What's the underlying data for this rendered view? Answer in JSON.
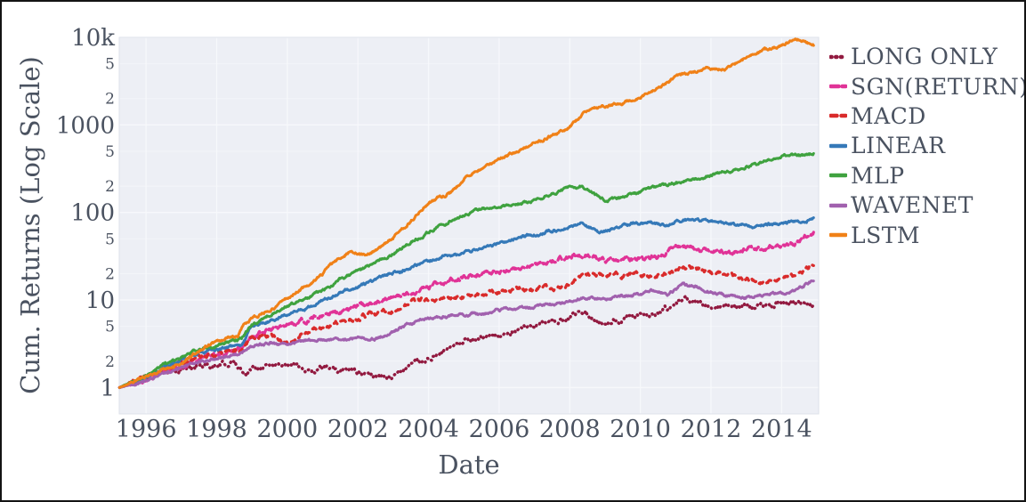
{
  "figure": {
    "border_color": "#141414",
    "background": "#ffffff"
  },
  "chart_data": {
    "type": "line",
    "title": "",
    "xlabel": "Date",
    "ylabel": "Cum. Returns (Log Scale)",
    "x_scale": "linear",
    "y_scale": "log",
    "xlim": [
      1995.24,
      2015.05
    ],
    "ylim": [
      0.5,
      10000
    ],
    "x_ticks": [
      1996,
      1998,
      2000,
      2002,
      2004,
      2006,
      2008,
      2010,
      2012,
      2014
    ],
    "y_ticks": [
      {
        "v": 1,
        "label": "1",
        "major": true
      },
      {
        "v": 2,
        "label": "2",
        "major": false
      },
      {
        "v": 5,
        "label": "5",
        "major": false
      },
      {
        "v": 10,
        "label": "10",
        "major": true
      },
      {
        "v": 20,
        "label": "2",
        "major": false
      },
      {
        "v": 50,
        "label": "5",
        "major": false
      },
      {
        "v": 100,
        "label": "100",
        "major": true
      },
      {
        "v": 200,
        "label": "2",
        "major": false
      },
      {
        "v": 500,
        "label": "5",
        "major": false
      },
      {
        "v": 1000,
        "label": "1000",
        "major": true
      },
      {
        "v": 2000,
        "label": "2",
        "major": false
      },
      {
        "v": 5000,
        "label": "5",
        "major": false
      },
      {
        "v": 10000,
        "label": "10k",
        "major": true
      }
    ],
    "grid": true,
    "legend_position": "right",
    "plot_bg": "#edeff5",
    "grid_color": "#f8f9fc",
    "text_color": "#4a5260",
    "series": [
      {
        "name": "LONG ONLY",
        "color": "#921a40",
        "style": "dotted",
        "points": [
          [
            1995.25,
            1
          ],
          [
            1995.6,
            1.12
          ],
          [
            1996,
            1.3
          ],
          [
            1996.4,
            1.52
          ],
          [
            1996.8,
            1.62
          ],
          [
            1997.2,
            1.6
          ],
          [
            1997.6,
            1.78
          ],
          [
            1998,
            1.76
          ],
          [
            1998.5,
            1.95
          ],
          [
            1998.8,
            1.5
          ],
          [
            1999.2,
            1.75
          ],
          [
            1999.7,
            1.85
          ],
          [
            2000.2,
            1.8
          ],
          [
            2000.7,
            1.55
          ],
          [
            2001.2,
            1.68
          ],
          [
            2001.8,
            1.55
          ],
          [
            2002.3,
            1.42
          ],
          [
            2002.8,
            1.3
          ],
          [
            2003.2,
            1.5
          ],
          [
            2003.8,
            2.05
          ],
          [
            2004.4,
            2.5
          ],
          [
            2005,
            3.25
          ],
          [
            2005.7,
            3.8
          ],
          [
            2006.3,
            4.2
          ],
          [
            2007,
            5
          ],
          [
            2007.8,
            5.9
          ],
          [
            2008.4,
            7.4
          ],
          [
            2008.9,
            5.2
          ],
          [
            2009.4,
            5.9
          ],
          [
            2009.9,
            6.4
          ],
          [
            2010.4,
            6.7
          ],
          [
            2011,
            9.2
          ],
          [
            2011.4,
            9.6
          ],
          [
            2012,
            8.8
          ],
          [
            2012.6,
            8
          ],
          [
            2013.1,
            8.5
          ],
          [
            2013.7,
            8.9
          ],
          [
            2014.1,
            9.3
          ],
          [
            2014.5,
            9
          ],
          [
            2014.92,
            8.7
          ]
        ]
      },
      {
        "name": "SGN(RETURN)",
        "color": "#e03397",
        "style": "dashed-dense",
        "points": [
          [
            1995.25,
            1
          ],
          [
            1996,
            1.25
          ],
          [
            1996.5,
            1.5
          ],
          [
            1997,
            1.8
          ],
          [
            1997.5,
            2.1
          ],
          [
            1998,
            2.4
          ],
          [
            1998.7,
            2.7
          ],
          [
            1999,
            3.9
          ],
          [
            1999.5,
            4.6
          ],
          [
            2000,
            5.3
          ],
          [
            2000.5,
            5.9
          ],
          [
            2001,
            6.6
          ],
          [
            2001.5,
            7.2
          ],
          [
            2002,
            8.2
          ],
          [
            2002.5,
            9.4
          ],
          [
            2003,
            10.8
          ],
          [
            2003.5,
            12.5
          ],
          [
            2004,
            14
          ],
          [
            2004.5,
            16.5
          ],
          [
            2005,
            18
          ],
          [
            2005.5,
            20
          ],
          [
            2006,
            21.5
          ],
          [
            2006.5,
            23
          ],
          [
            2007,
            25
          ],
          [
            2007.6,
            29
          ],
          [
            2008,
            31
          ],
          [
            2008.5,
            33
          ],
          [
            2009,
            28.5
          ],
          [
            2009.5,
            29
          ],
          [
            2010,
            30
          ],
          [
            2010.5,
            31.5
          ],
          [
            2011,
            41
          ],
          [
            2011.5,
            39
          ],
          [
            2012,
            36.5
          ],
          [
            2012.6,
            34.5
          ],
          [
            2013,
            38
          ],
          [
            2013.6,
            40
          ],
          [
            2014,
            42
          ],
          [
            2014.5,
            46
          ],
          [
            2014.92,
            61
          ]
        ]
      },
      {
        "name": "MACD",
        "color": "#d92b2b",
        "style": "dashed",
        "points": [
          [
            1995.25,
            1
          ],
          [
            1996,
            1.3
          ],
          [
            1996.5,
            1.6
          ],
          [
            1997,
            1.9
          ],
          [
            1997.5,
            2.2
          ],
          [
            1998,
            2.4
          ],
          [
            1998.7,
            2.7
          ],
          [
            1999,
            3.7
          ],
          [
            1999.5,
            3.9
          ],
          [
            2000,
            3.4
          ],
          [
            2000.5,
            4.2
          ],
          [
            2001,
            5.1
          ],
          [
            2001.5,
            5.7
          ],
          [
            2002,
            6.3
          ],
          [
            2002.5,
            6.9
          ],
          [
            2003,
            7.6
          ],
          [
            2003.7,
            10
          ],
          [
            2004.2,
            10.4
          ],
          [
            2005,
            11
          ],
          [
            2005.5,
            11.8
          ],
          [
            2006,
            12.6
          ],
          [
            2006.6,
            13.6
          ],
          [
            2007,
            13
          ],
          [
            2007.5,
            13.8
          ],
          [
            2008,
            14.5
          ],
          [
            2008.35,
            19.5
          ],
          [
            2009,
            20
          ],
          [
            2009.5,
            19.4
          ],
          [
            2010,
            19.8
          ],
          [
            2010.5,
            19.3
          ],
          [
            2011,
            22
          ],
          [
            2011.4,
            23
          ],
          [
            2012,
            20.5
          ],
          [
            2012.5,
            19
          ],
          [
            2013,
            17.5
          ],
          [
            2013.6,
            16.5
          ],
          [
            2014,
            17.5
          ],
          [
            2014.5,
            20
          ],
          [
            2014.92,
            27
          ]
        ]
      },
      {
        "name": "LINEAR",
        "color": "#3579b8",
        "style": "solid",
        "points": [
          [
            1995.25,
            1
          ],
          [
            1996,
            1.3
          ],
          [
            1996.5,
            1.7
          ],
          [
            1997,
            2.1
          ],
          [
            1997.5,
            2.5
          ],
          [
            1998,
            2.7
          ],
          [
            1998.7,
            3.1
          ],
          [
            1999,
            5
          ],
          [
            1999.5,
            5.8
          ],
          [
            2000,
            6.8
          ],
          [
            2000.5,
            8
          ],
          [
            2001,
            10
          ],
          [
            2001.5,
            12
          ],
          [
            2002,
            14
          ],
          [
            2002.5,
            17
          ],
          [
            2003,
            20
          ],
          [
            2003.5,
            23
          ],
          [
            2004,
            28
          ],
          [
            2004.5,
            32
          ],
          [
            2005,
            35
          ],
          [
            2005.5,
            39
          ],
          [
            2006,
            45
          ],
          [
            2006.5,
            50
          ],
          [
            2007,
            56
          ],
          [
            2007.8,
            65
          ],
          [
            2008.3,
            76
          ],
          [
            2008.8,
            60
          ],
          [
            2009.3,
            65
          ],
          [
            2009.8,
            75
          ],
          [
            2010.2,
            78
          ],
          [
            2010.7,
            72
          ],
          [
            2011.2,
            83
          ],
          [
            2011.7,
            80
          ],
          [
            2012.2,
            79
          ],
          [
            2012.7,
            74
          ],
          [
            2013.2,
            70
          ],
          [
            2013.8,
            75
          ],
          [
            2014.3,
            78
          ],
          [
            2014.7,
            80
          ],
          [
            2014.92,
            88
          ]
        ]
      },
      {
        "name": "MLP",
        "color": "#3fa23f",
        "style": "solid",
        "points": [
          [
            1995.25,
            1
          ],
          [
            1996,
            1.35
          ],
          [
            1996.5,
            1.8
          ],
          [
            1997,
            2.2
          ],
          [
            1997.5,
            2.7
          ],
          [
            1998,
            3
          ],
          [
            1998.7,
            3.6
          ],
          [
            1999,
            5.2
          ],
          [
            1999.5,
            6.8
          ],
          [
            2000,
            8.5
          ],
          [
            2000.5,
            10.5
          ],
          [
            2001,
            13
          ],
          [
            2001.5,
            17
          ],
          [
            2002,
            21
          ],
          [
            2002.5,
            27
          ],
          [
            2003,
            34
          ],
          [
            2003.5,
            46
          ],
          [
            2004,
            60
          ],
          [
            2004.5,
            75
          ],
          [
            2005,
            92
          ],
          [
            2005.5,
            109
          ],
          [
            2006,
            118
          ],
          [
            2006.5,
            122
          ],
          [
            2007,
            135
          ],
          [
            2007.5,
            160
          ],
          [
            2008,
            190
          ],
          [
            2008.35,
            200
          ],
          [
            2009,
            138
          ],
          [
            2009.6,
            150
          ],
          [
            2010,
            172
          ],
          [
            2010.5,
            196
          ],
          [
            2011,
            215
          ],
          [
            2011.5,
            235
          ],
          [
            2012,
            265
          ],
          [
            2012.5,
            300
          ],
          [
            2013,
            335
          ],
          [
            2013.5,
            380
          ],
          [
            2014,
            430
          ],
          [
            2014.35,
            458
          ],
          [
            2014.6,
            445
          ],
          [
            2014.92,
            480
          ]
        ]
      },
      {
        "name": "WAVENET",
        "color": "#a161ae",
        "style": "solid",
        "points": [
          [
            1995.25,
            1
          ],
          [
            1996,
            1.2
          ],
          [
            1996.5,
            1.45
          ],
          [
            1997,
            1.7
          ],
          [
            1997.5,
            2
          ],
          [
            1998,
            2.2
          ],
          [
            1998.6,
            2.4
          ],
          [
            1999,
            3
          ],
          [
            1999.5,
            3.25
          ],
          [
            2000,
            3.05
          ],
          [
            2000.5,
            3.4
          ],
          [
            2001,
            3.6
          ],
          [
            2001.5,
            3.4
          ],
          [
            2002,
            3.7
          ],
          [
            2002.5,
            3.5
          ],
          [
            2003,
            4.4
          ],
          [
            2003.75,
            6
          ],
          [
            2004.3,
            6.3
          ],
          [
            2005,
            6.9
          ],
          [
            2005.6,
            7.2
          ],
          [
            2006,
            7.6
          ],
          [
            2007,
            8.4
          ],
          [
            2007.5,
            9
          ],
          [
            2008,
            9.8
          ],
          [
            2008.4,
            10.6
          ],
          [
            2009,
            10.5
          ],
          [
            2009.5,
            11
          ],
          [
            2010,
            11.4
          ],
          [
            2010.3,
            12.5
          ],
          [
            2010.8,
            11.6
          ],
          [
            2011.2,
            15
          ],
          [
            2011.6,
            14
          ],
          [
            2012,
            12.6
          ],
          [
            2012.5,
            11
          ],
          [
            2013,
            10.8
          ],
          [
            2013.5,
            11.6
          ],
          [
            2014,
            12
          ],
          [
            2014.4,
            13
          ],
          [
            2014.92,
            17
          ]
        ]
      },
      {
        "name": "LSTM",
        "color": "#f08118",
        "style": "solid",
        "points": [
          [
            1995.25,
            1
          ],
          [
            1996,
            1.35
          ],
          [
            1996.5,
            1.6
          ],
          [
            1997,
            1.95
          ],
          [
            1997.5,
            2.6
          ],
          [
            1998,
            3.4
          ],
          [
            1998.6,
            4
          ],
          [
            1998.75,
            5.3
          ],
          [
            1999,
            6.2
          ],
          [
            1999.7,
            8.5
          ],
          [
            2000,
            10.5
          ],
          [
            2000.8,
            17
          ],
          [
            2001.3,
            26
          ],
          [
            2001.75,
            36
          ],
          [
            2002.2,
            33
          ],
          [
            2002.7,
            40
          ],
          [
            2003,
            52
          ],
          [
            2003.5,
            80
          ],
          [
            2004,
            130
          ],
          [
            2004.6,
            165
          ],
          [
            2005,
            240
          ],
          [
            2005.5,
            320
          ],
          [
            2006,
            405
          ],
          [
            2006.5,
            500
          ],
          [
            2007,
            610
          ],
          [
            2007.5,
            760
          ],
          [
            2008,
            950
          ],
          [
            2008.4,
            1400
          ],
          [
            2008.8,
            1600
          ],
          [
            2009.5,
            1750
          ],
          [
            2010,
            2100
          ],
          [
            2010.5,
            2650
          ],
          [
            2011,
            3600
          ],
          [
            2011.5,
            3950
          ],
          [
            2012,
            4400
          ],
          [
            2012.4,
            4300
          ],
          [
            2012.8,
            5300
          ],
          [
            2013.2,
            6400
          ],
          [
            2013.6,
            7200
          ],
          [
            2014,
            8100
          ],
          [
            2014.4,
            9600
          ],
          [
            2014.7,
            8900
          ],
          [
            2014.92,
            8300
          ]
        ]
      }
    ]
  }
}
